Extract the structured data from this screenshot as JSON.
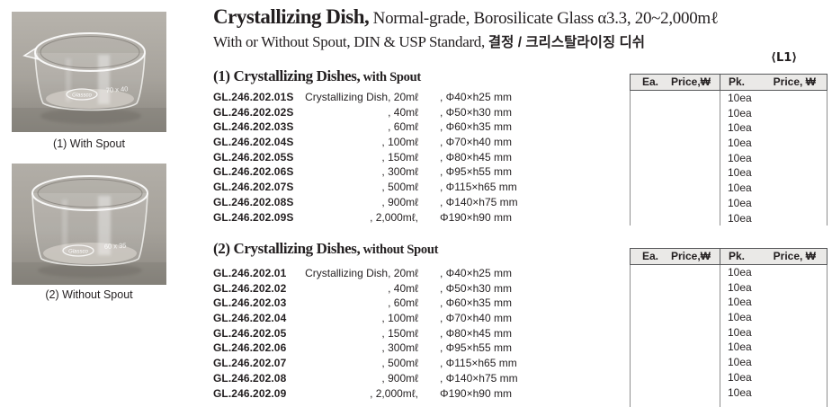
{
  "page": {
    "l1_tag": "⟨L1⟩"
  },
  "colors": {
    "header_bg": "#eae9e7",
    "border_dark": "#58595b",
    "line_gray": "#8e8e8e",
    "text": "#231f20",
    "photo_bg": "#a7a39c"
  },
  "title": {
    "line1_main": "Crystallizing Dish,",
    "line1_rest": " Normal-grade, Borosilicate Glass α3.3, 20~2,000mℓ",
    "line2_main": "With or Without Spout, DIN & USP Standard, ",
    "line2_korean": "결정 / 크리스탈라이징 디쉬"
  },
  "photos": [
    {
      "caption": "(1) With Spout",
      "logo": "Glassco",
      "marking": "70 x 40"
    },
    {
      "caption": "(2) Without Spout",
      "logo": "Glassco",
      "marking": "60 x 35"
    }
  ],
  "price_header": {
    "ea": "Ea.",
    "ea_price": "Price,₩",
    "pk": "Pk.",
    "pk_price": "Price, ₩"
  },
  "sections": [
    {
      "heading": "(1) Crystallizing Dishes,",
      "heading_suffix": " with Spout",
      "rows": [
        {
          "code": "GL.246.202.01S",
          "desc": "Crystallizing Dish, 20mℓ",
          "dims": ", Φ40×h25 mm",
          "pk": "10ea"
        },
        {
          "code": "GL.246.202.02S",
          "desc": ", 40mℓ",
          "dims": ", Φ50×h30 mm",
          "pk": "10ea"
        },
        {
          "code": "GL.246.202.03S",
          "desc": ", 60mℓ",
          "dims": ", Φ60×h35 mm",
          "pk": "10ea"
        },
        {
          "code": "GL.246.202.04S",
          "desc": ", 100mℓ",
          "dims": ", Φ70×h40 mm",
          "pk": "10ea"
        },
        {
          "code": "GL.246.202.05S",
          "desc": ", 150mℓ",
          "dims": ", Φ80×h45 mm",
          "pk": "10ea"
        },
        {
          "code": "GL.246.202.06S",
          "desc": ", 300mℓ",
          "dims": ", Φ95×h55 mm",
          "pk": "10ea"
        },
        {
          "code": "GL.246.202.07S",
          "desc": ", 500mℓ",
          "dims": ", Φ115×h65 mm",
          "pk": "10ea"
        },
        {
          "code": "GL.246.202.08S",
          "desc": ", 900mℓ",
          "dims": ", Φ140×h75 mm",
          "pk": "10ea"
        },
        {
          "code": "GL.246.202.09S",
          "desc": ", 2,000mℓ,",
          "dims": "Φ190×h90 mm",
          "pk": "10ea"
        }
      ]
    },
    {
      "heading": "(2) Crystallizing Dishes,",
      "heading_suffix": " without Spout",
      "rows": [
        {
          "code": "GL.246.202.01",
          "desc": "Crystallizing Dish, 20mℓ",
          "dims": ", Φ40×h25 mm",
          "pk": "10ea"
        },
        {
          "code": "GL.246.202.02",
          "desc": ", 40mℓ",
          "dims": ", Φ50×h30 mm",
          "pk": "10ea"
        },
        {
          "code": "GL.246.202.03",
          "desc": ", 60mℓ",
          "dims": ", Φ60×h35 mm",
          "pk": "10ea"
        },
        {
          "code": "GL.246.202.04",
          "desc": ", 100mℓ",
          "dims": ", Φ70×h40 mm",
          "pk": "10ea"
        },
        {
          "code": "GL.246.202.05",
          "desc": ", 150mℓ",
          "dims": ", Φ80×h45 mm",
          "pk": "10ea"
        },
        {
          "code": "GL.246.202.06",
          "desc": ", 300mℓ",
          "dims": ", Φ95×h55 mm",
          "pk": "10ea"
        },
        {
          "code": "GL.246.202.07",
          "desc": ", 500mℓ",
          "dims": ", Φ115×h65 mm",
          "pk": "10ea"
        },
        {
          "code": "GL.246.202.08",
          "desc": ", 900mℓ",
          "dims": ", Φ140×h75 mm",
          "pk": "10ea"
        },
        {
          "code": "GL.246.202.09",
          "desc": ", 2,000mℓ,",
          "dims": "Φ190×h90 mm",
          "pk": "10ea"
        }
      ]
    }
  ]
}
